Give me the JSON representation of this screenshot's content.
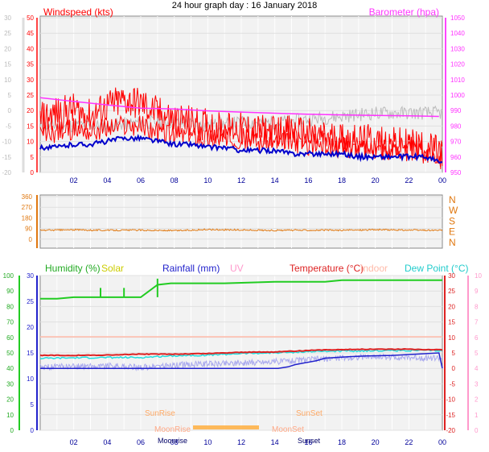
{
  "title": "24 hour graph day : 16 January 2018",
  "x_ticks": [
    "02",
    "04",
    "06",
    "08",
    "10",
    "12",
    "14",
    "16",
    "18",
    "20",
    "22",
    "00"
  ],
  "colors": {
    "wind": "#ff0000",
    "gust": "#ff0000",
    "bar": "#ff33ff",
    "avg": "#0000cc",
    "dir": "#e07810",
    "hum": "#22cc22",
    "solar": "#cccc00",
    "rain": "#2222cc",
    "uv": "#ff99cc",
    "temp": "#dd2222",
    "indoor": "#ffbbaa",
    "dew": "#22dddd",
    "grey": "#bbbbbb",
    "lav": "#aaaaee",
    "orange": "#ffaa33"
  },
  "chart_data": [
    {
      "type": "line",
      "id": "wind_baro",
      "left_label": "Windspeed (kts)",
      "right_label": "Barometer (hpa)",
      "left_ticks_outer": [
        "30",
        "25",
        "20",
        "15",
        "10",
        "5",
        "0",
        "-5",
        "-10",
        "-15",
        "-20"
      ],
      "left_ticks_inner": [
        "50",
        "45",
        "40",
        "35",
        "30",
        "25",
        "20",
        "15",
        "10",
        "5",
        "0"
      ],
      "right_ticks": [
        "1050",
        "1040",
        "1030",
        "1020",
        "1010",
        "1000",
        "990",
        "980",
        "970",
        "960",
        "950"
      ],
      "ylim_left": [
        0,
        50
      ],
      "ylim_right": [
        950,
        1050
      ],
      "series": [
        {
          "key": "gust",
          "hours": [
            0,
            1,
            2,
            3,
            4,
            5,
            6,
            7,
            8,
            9,
            10,
            11,
            12,
            13,
            14,
            15,
            16,
            17,
            18,
            19,
            20,
            21,
            22,
            23,
            24
          ],
          "values": [
            17,
            19,
            20,
            18,
            21,
            23,
            22,
            19,
            17,
            16,
            15,
            14,
            14,
            13,
            13,
            13,
            12,
            11,
            11,
            10,
            10,
            9,
            9,
            8,
            6
          ]
        },
        {
          "key": "wind",
          "hours": [
            0,
            1,
            2,
            3,
            4,
            5,
            6,
            7,
            8,
            9,
            10,
            11,
            12,
            13,
            14,
            15,
            16,
            17,
            18,
            19,
            20,
            21,
            22,
            23,
            24
          ],
          "values": [
            12,
            13,
            14,
            13,
            14,
            15,
            15,
            13,
            12,
            12,
            11,
            11,
            11,
            10,
            10,
            10,
            9,
            9,
            8,
            8,
            8,
            7,
            7,
            7,
            5
          ]
        },
        {
          "key": "avg",
          "hours": [
            0,
            1,
            2,
            3,
            4,
            5,
            6,
            7,
            8,
            9,
            10,
            11,
            12,
            13,
            14,
            15,
            16,
            17,
            18,
            19,
            20,
            21,
            22,
            23,
            24
          ],
          "values": [
            8,
            8,
            9,
            9,
            10,
            11,
            11,
            10,
            9,
            9,
            8,
            8,
            7,
            7,
            7,
            6,
            6,
            6,
            6,
            5,
            5,
            5,
            5,
            5,
            3
          ]
        },
        {
          "key": "bar",
          "hours": [
            0,
            2,
            4,
            6,
            8,
            10,
            12,
            14,
            16,
            18,
            20,
            22,
            23.8
          ],
          "values": [
            997.8,
            995.4,
            993.2,
            991.1,
            990.6,
            989.4,
            988.6,
            987.9,
            987.2,
            986.8,
            986.5,
            986.2,
            985.8
          ]
        },
        {
          "key": "grey",
          "hours": [
            0,
            2,
            4,
            6,
            8,
            10,
            12,
            14,
            16,
            18,
            20,
            22,
            24
          ],
          "values": [
            15,
            15,
            15,
            16,
            16,
            15,
            16,
            16,
            17,
            18,
            19,
            19,
            19
          ]
        }
      ]
    },
    {
      "type": "line",
      "id": "wind_direction",
      "left_ticks": [
        "360",
        "270",
        "180",
        "90",
        "0"
      ],
      "right_ticks": [
        "N",
        "W",
        "S",
        "E",
        "N"
      ],
      "ylim": [
        0,
        360
      ],
      "series": [
        {
          "key": "dir",
          "hours": [
            0,
            2,
            4,
            6,
            8,
            10,
            12,
            14,
            16,
            18,
            20,
            22,
            24
          ],
          "values": [
            125,
            128,
            125,
            126,
            122,
            130,
            127,
            124,
            126,
            125,
            129,
            126,
            124
          ]
        }
      ]
    },
    {
      "type": "line",
      "id": "temp_hum",
      "labels": {
        "hum": "Humidity (%)",
        "solar": "Solar",
        "rain": "Rainfall (mm)",
        "uv": "UV",
        "temp": "Temperature (°C)",
        "indoor": "Indoor",
        "dew": "Dew Point (°C)"
      },
      "hum_ticks": [
        "100",
        "90",
        "80",
        "70",
        "60",
        "50",
        "40",
        "30",
        "20",
        "10",
        "0"
      ],
      "rain_ticks": [
        "30",
        "25",
        "20",
        "15",
        "10",
        "5",
        "0"
      ],
      "temp_ticks": [
        "30",
        "25",
        "20",
        "15",
        "10",
        "5",
        "0",
        "-5",
        "-10",
        "-15",
        "-20"
      ],
      "uv_ticks": [
        "10",
        "9",
        "8",
        "7",
        "6",
        "5",
        "4",
        "3",
        "2",
        "1",
        "0"
      ],
      "ylim_hum": [
        0,
        100
      ],
      "ylim_temp": [
        -20,
        30
      ],
      "annotations": {
        "sunrise": "SunRise",
        "sunset": "SunSet",
        "moonrise": "MoonRise",
        "moonset": "MoonSet",
        "moonrise_axis": "Moonrise",
        "sunset_axis": "Sunset"
      },
      "series": [
        {
          "key": "hum",
          "hours": [
            0,
            1,
            2,
            3,
            4,
            5,
            6,
            6.5,
            7,
            7.8,
            9,
            11,
            14,
            17,
            18,
            20,
            22,
            24
          ],
          "values": [
            85,
            85,
            86,
            86,
            86,
            86,
            86,
            90,
            94,
            95,
            95,
            95,
            96,
            96,
            97,
            97,
            97,
            97
          ]
        },
        {
          "key": "temp",
          "hours": [
            0,
            2,
            4,
            6,
            8,
            10,
            12,
            14,
            16,
            18,
            20,
            22,
            24
          ],
          "values": [
            4.2,
            4.2,
            4.3,
            4.6,
            4.6,
            4.8,
            5.2,
            5.3,
            5.8,
            6.1,
            6.2,
            6.2,
            6.0
          ]
        },
        {
          "key": "dew",
          "hours": [
            0,
            2,
            4,
            6,
            8,
            10,
            12,
            14,
            16,
            18,
            20,
            22,
            24
          ],
          "values": [
            3.2,
            3.4,
            3.5,
            3.5,
            4.1,
            4.3,
            4.8,
            5.0,
            5.4,
            5.6,
            5.7,
            5.8,
            5.7
          ]
        },
        {
          "key": "indoor",
          "hours": [
            0,
            24
          ],
          "values": [
            10.2,
            10.2
          ]
        },
        {
          "key": "lav",
          "hours": [
            0,
            2,
            4,
            6,
            8,
            10,
            12,
            14,
            16,
            18,
            20,
            22,
            24
          ],
          "values": [
            0.4,
            0.6,
            0.8,
            0.3,
            1.0,
            1.5,
            1.8,
            2.2,
            2.8,
            3.4,
            3.8,
            3.5,
            3.3
          ]
        },
        {
          "key": "rain",
          "hours": [
            0,
            14.2,
            14.8,
            15.2,
            15.8,
            16.5,
            17.0,
            18.5,
            19.5,
            21,
            22.5,
            23.8,
            24
          ],
          "values": [
            0,
            0,
            0.5,
            1.2,
            1.8,
            2.5,
            3.3,
            3.8,
            4.0,
            4.2,
            4.6,
            5.0,
            0
          ]
        }
      ]
    }
  ]
}
